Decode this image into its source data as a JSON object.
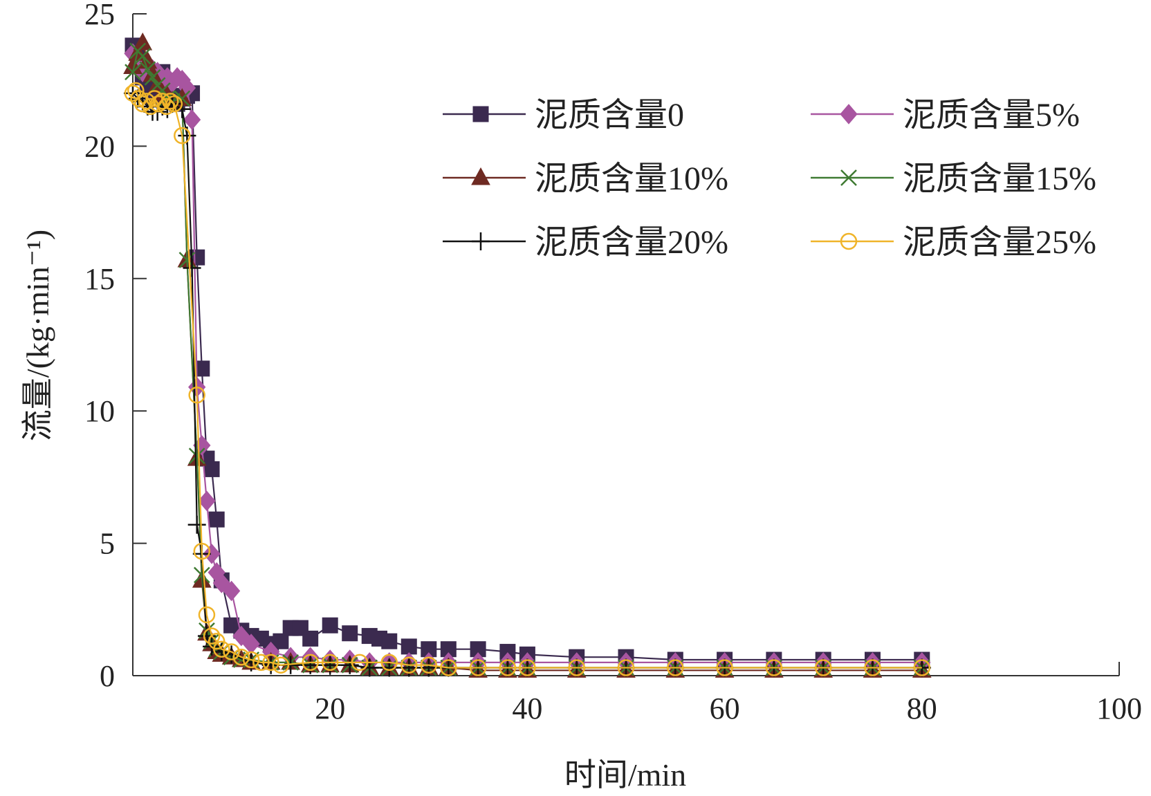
{
  "chart_data": {
    "type": "line",
    "title": "",
    "xlabel": "时间/min",
    "ylabel": "流量/(kg·min⁻¹)",
    "xlim": [
      0,
      100
    ],
    "ylim": [
      0,
      25
    ],
    "xticks": [
      20,
      40,
      60,
      80,
      100
    ],
    "xtick_labels": [
      "20",
      "40",
      "60",
      "80",
      "100"
    ],
    "yticks": [
      0,
      5,
      10,
      15,
      20,
      25
    ],
    "ytick_labels": [
      "0",
      "5",
      "10",
      "15",
      "20",
      "25"
    ],
    "grid": false,
    "legend_position": "top-right",
    "series": [
      {
        "name": "泥质含量0",
        "color": "#3b2a4f",
        "marker": "square",
        "x": [
          0,
          0.5,
          1,
          1.5,
          2,
          2.5,
          3,
          3.5,
          4,
          4.5,
          5,
          5.5,
          6,
          6.5,
          7,
          7.5,
          8,
          8.5,
          9,
          10,
          11,
          12,
          13,
          14,
          15,
          16,
          17,
          18,
          20,
          22,
          24,
          25,
          26,
          28,
          30,
          32,
          35,
          38,
          40,
          45,
          50,
          55,
          60,
          65,
          70,
          75,
          80
        ],
        "y": [
          23.8,
          23.5,
          22.6,
          22.2,
          21.9,
          22.3,
          22.8,
          22.1,
          21.9,
          21.6,
          21.8,
          21.9,
          22.0,
          15.8,
          11.6,
          8.2,
          7.8,
          5.9,
          3.6,
          1.9,
          1.7,
          1.5,
          1.4,
          1.2,
          1.3,
          1.8,
          1.8,
          1.4,
          1.9,
          1.6,
          1.5,
          1.4,
          1.3,
          1.1,
          1.0,
          1.0,
          1.0,
          0.9,
          0.8,
          0.7,
          0.7,
          0.6,
          0.6,
          0.6,
          0.6,
          0.6,
          0.6
        ]
      },
      {
        "name": "泥质含量5%",
        "color": "#a855a0",
        "marker": "diamond",
        "x": [
          0,
          0.5,
          1,
          1.5,
          2,
          2.5,
          3,
          3.5,
          4,
          4.5,
          5,
          5.5,
          6,
          6.5,
          7,
          7.5,
          8,
          8.5,
          9,
          10,
          11,
          12,
          14,
          16,
          18,
          20,
          22,
          24,
          26,
          28,
          30,
          32,
          35,
          38,
          40,
          45,
          50,
          55,
          60,
          65,
          70,
          75,
          80
        ],
        "y": [
          23.5,
          23.1,
          22.8,
          23.0,
          22.9,
          22.8,
          22.5,
          22.6,
          22.4,
          22.6,
          22.5,
          22.2,
          21.0,
          10.9,
          8.7,
          6.6,
          4.6,
          3.9,
          3.5,
          3.2,
          1.5,
          1.2,
          0.9,
          0.7,
          0.7,
          0.6,
          0.6,
          0.5,
          0.5,
          0.5,
          0.5,
          0.5,
          0.5,
          0.5,
          0.5,
          0.5,
          0.5,
          0.5,
          0.5,
          0.5,
          0.5,
          0.5,
          0.5
        ]
      },
      {
        "name": "泥质含量10%",
        "color": "#6e2a22",
        "marker": "triangle",
        "x": [
          0,
          0.5,
          1,
          1.5,
          2,
          2.5,
          3,
          3.5,
          4,
          5,
          5.5,
          6.5,
          7,
          7.5,
          8,
          8.5,
          9,
          10,
          11,
          12,
          14,
          16,
          18,
          20,
          22,
          24,
          26,
          28,
          30,
          32,
          35,
          38,
          40,
          45,
          50,
          55,
          60,
          65,
          70,
          75,
          80
        ],
        "y": [
          23.0,
          23.5,
          23.9,
          23.2,
          22.7,
          22.3,
          22.0,
          21.9,
          21.7,
          21.8,
          15.7,
          8.2,
          3.6,
          1.6,
          1.2,
          0.9,
          0.8,
          0.7,
          0.6,
          0.5,
          0.5,
          0.5,
          0.4,
          0.4,
          0.4,
          0.3,
          0.3,
          0.3,
          0.3,
          0.3,
          0.2,
          0.2,
          0.2,
          0.2,
          0.2,
          0.2,
          0.2,
          0.2,
          0.2,
          0.2,
          0.2
        ]
      },
      {
        "name": "泥质含量15%",
        "color": "#3f7a32",
        "marker": "x",
        "x": [
          0,
          0.5,
          1,
          1.5,
          2,
          2.5,
          3,
          3.5,
          4,
          5,
          5.5,
          6.5,
          7,
          7.5,
          8,
          8.5,
          9,
          10,
          11,
          12,
          14,
          16,
          18,
          20,
          22,
          24,
          26,
          28,
          30,
          32,
          35,
          38,
          40,
          45,
          50,
          55,
          60,
          65,
          70,
          75,
          80
        ],
        "y": [
          22.8,
          23.6,
          23.4,
          22.9,
          22.6,
          22.3,
          22.1,
          21.8,
          21.7,
          21.8,
          15.7,
          8.3,
          3.8,
          1.7,
          1.3,
          1.0,
          0.9,
          0.7,
          0.6,
          0.6,
          0.5,
          0.5,
          0.4,
          0.4,
          0.4,
          0.3,
          0.3,
          0.3,
          0.3,
          0.3,
          0.3,
          0.3,
          0.3,
          0.3,
          0.3,
          0.3,
          0.3,
          0.3,
          0.3,
          0.3,
          0.3
        ]
      },
      {
        "name": "泥质含量20%",
        "color": "#111111",
        "marker": "plus",
        "x": [
          0,
          0.5,
          1,
          1.5,
          2,
          2.5,
          3,
          3.5,
          4,
          5,
          5.5,
          6,
          6.5,
          7,
          7.5,
          8,
          9,
          10,
          12,
          14,
          16,
          18,
          20,
          22,
          24,
          26,
          28,
          30,
          32,
          35,
          38,
          40,
          45,
          50,
          55,
          60,
          65,
          70,
          75,
          80
        ],
        "y": [
          22.0,
          21.8,
          21.7,
          21.5,
          21.3,
          21.3,
          21.5,
          21.4,
          21.6,
          21.4,
          20.4,
          15.4,
          5.7,
          4.6,
          1.5,
          1.1,
          0.9,
          0.8,
          0.5,
          0.4,
          0.4,
          0.4,
          0.4,
          0.4,
          0.3,
          0.3,
          0.3,
          0.3,
          0.3,
          0.3,
          0.3,
          0.3,
          0.3,
          0.3,
          0.3,
          0.3,
          0.3,
          0.3,
          0.3,
          0.3
        ]
      },
      {
        "name": "泥质含量25%",
        "color": "#f0b429",
        "marker": "circle",
        "x": [
          0,
          0.3,
          0.6,
          1,
          1.4,
          1.8,
          2.2,
          2.6,
          3,
          3.4,
          3.8,
          4.2,
          5,
          6.5,
          7,
          7.5,
          8,
          8.5,
          9,
          10,
          11,
          12,
          13,
          14,
          15,
          18,
          20,
          23,
          26,
          28,
          30,
          32,
          35,
          38,
          40,
          45,
          50,
          55,
          60,
          65,
          70,
          75,
          80
        ],
        "y": [
          22.0,
          22.1,
          21.8,
          21.6,
          21.7,
          21.5,
          21.8,
          21.6,
          21.7,
          21.5,
          21.7,
          21.6,
          20.4,
          10.6,
          4.7,
          2.3,
          1.5,
          1.3,
          1.0,
          0.9,
          0.7,
          0.6,
          0.5,
          0.5,
          0.4,
          0.5,
          0.5,
          0.5,
          0.5,
          0.4,
          0.4,
          0.3,
          0.3,
          0.3,
          0.3,
          0.3,
          0.3,
          0.3,
          0.3,
          0.3,
          0.3,
          0.3,
          0.3
        ]
      }
    ]
  }
}
